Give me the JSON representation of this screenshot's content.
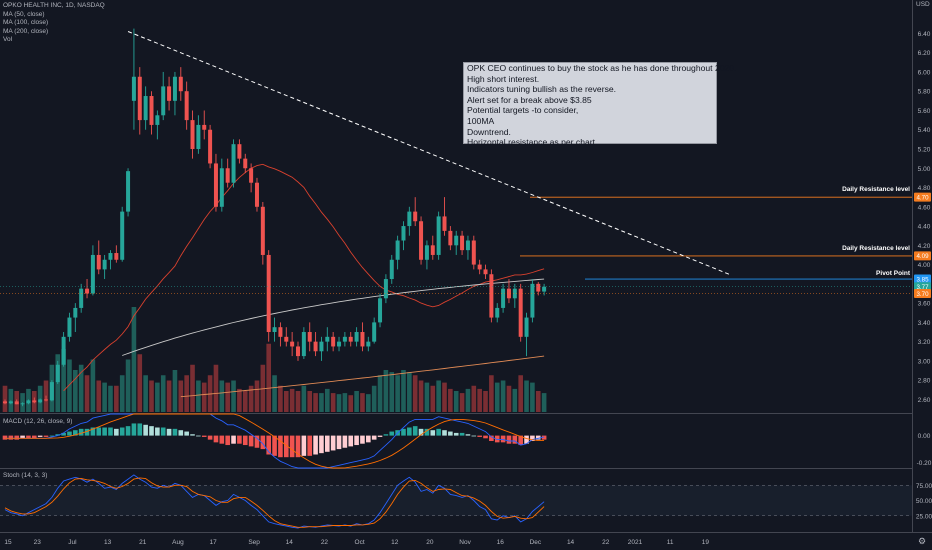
{
  "legend": {
    "symbol": "OPKO HEALTH INC, 1D, NASDAQ",
    "ma50": "MA (50, close)",
    "ma100": "MA (100, close)",
    "ma200": "MA (200, close)",
    "vol": "Vol"
  },
  "currency": "USD",
  "icons": {
    "settings": "gear-icon"
  },
  "macd_label": "MACD (12, 26, close, 9)",
  "stoch_label": "Stoch (14, 3, 3)",
  "note_lines": [
    "OPK CEO continues to buy the stock as he has done throughout 2020.",
    "High short interest.",
    "Indicators tuning bullish as the reverse.",
    "Alert set for a break above $3.85",
    "Potential targets -to consider,",
    "100MA",
    "Downtrend.",
    "Horizontal resistance as per chart."
  ],
  "colors": {
    "up": "#26a69a",
    "down": "#ef5350",
    "background": "#131722",
    "ma50": "#d9412e",
    "ma100": "#c9c9c9",
    "ma200": "#e08a55",
    "resistance": "#f57c1f",
    "pivot": "#2196f3",
    "macd": "#2962ff",
    "signal": "#ff6d00"
  },
  "chart_data": {
    "type": "candlestick",
    "x_ticks": [
      "15",
      "23",
      "Jul",
      "13",
      "21",
      "Aug",
      "17",
      "Sep",
      "14",
      "22",
      "Oct",
      "12",
      "20",
      "Nov",
      "16",
      "Dec",
      "14",
      "22",
      "2021",
      "11",
      "19"
    ],
    "y_ticks": [
      "2.60",
      "2.80",
      "3.00",
      "3.20",
      "3.40",
      "3.60",
      "3.80",
      "4.00",
      "4.20",
      "4.40",
      "4.60",
      "4.80",
      "5.00",
      "5.20",
      "5.40",
      "5.60",
      "5.80",
      "6.00",
      "6.20",
      "6.40"
    ],
    "ylim": [
      2.48,
      6.56
    ],
    "annotations": {
      "daily_resistance_1": {
        "label": "Daily Resistance level",
        "value": 4.7,
        "price_label": "4.70"
      },
      "daily_resistance_2": {
        "label": "Daily Resistance level",
        "value": 4.09,
        "price_label": "4.09"
      },
      "pivot_point": {
        "label": "Pivot Point",
        "value": 3.85,
        "price_label": "3.85"
      },
      "last_price": {
        "value": 3.77,
        "price_label": "3.77"
      },
      "ma_price": {
        "value": 3.7,
        "price_label": "3.70"
      },
      "downtrend_line": {
        "start": [
          21,
          6.42
        ],
        "end": [
          83,
          3.89
        ]
      }
    },
    "macd_ticks": [
      "0.00",
      "-0.20"
    ],
    "macd_ylim": [
      -0.24,
      0.16
    ],
    "stoch_ticks": [
      "75.00",
      "50.00",
      "25.00"
    ],
    "stoch_ylim": [
      0,
      100
    ],
    "candles": [
      [
        2.58,
        2.6,
        2.55,
        2.56
      ],
      [
        2.56,
        2.59,
        2.55,
        2.58
      ],
      [
        2.58,
        2.6,
        2.55,
        2.55
      ],
      [
        2.55,
        2.57,
        2.53,
        2.56
      ],
      [
        2.56,
        2.6,
        2.55,
        2.59
      ],
      [
        2.59,
        2.62,
        2.56,
        2.57
      ],
      [
        2.57,
        2.61,
        2.56,
        2.6
      ],
      [
        2.6,
        2.64,
        2.58,
        2.59
      ],
      [
        2.59,
        2.8,
        2.58,
        2.78
      ],
      [
        2.78,
        3.0,
        2.76,
        2.96
      ],
      [
        2.96,
        3.3,
        2.94,
        3.25
      ],
      [
        3.25,
        3.5,
        3.2,
        3.45
      ],
      [
        3.45,
        3.6,
        3.3,
        3.55
      ],
      [
        3.55,
        3.8,
        3.5,
        3.75
      ],
      [
        3.75,
        3.85,
        3.65,
        3.7
      ],
      [
        3.7,
        4.2,
        3.68,
        4.1
      ],
      [
        4.1,
        4.25,
        3.9,
        3.95
      ],
      [
        3.95,
        4.1,
        3.85,
        4.05
      ],
      [
        4.05,
        4.15,
        3.95,
        4.12
      ],
      [
        4.12,
        4.2,
        4.02,
        4.05
      ],
      [
        4.05,
        4.6,
        4.03,
        4.55
      ],
      [
        4.55,
        5.0,
        4.5,
        4.97
      ],
      [
        5.7,
        6.45,
        5.4,
        5.95
      ],
      [
        5.95,
        6.05,
        5.35,
        5.5
      ],
      [
        5.5,
        5.85,
        5.4,
        5.75
      ],
      [
        5.75,
        5.8,
        5.35,
        5.45
      ],
      [
        5.45,
        5.6,
        5.3,
        5.55
      ],
      [
        5.55,
        6.0,
        5.5,
        5.85
      ],
      [
        5.85,
        5.95,
        5.6,
        5.7
      ],
      [
        5.7,
        6.0,
        5.55,
        5.95
      ],
      [
        5.95,
        6.05,
        5.7,
        5.8
      ],
      [
        5.8,
        5.9,
        5.4,
        5.5
      ],
      [
        5.5,
        5.6,
        5.1,
        5.2
      ],
      [
        5.2,
        5.55,
        5.15,
        5.45
      ],
      [
        5.45,
        5.6,
        5.3,
        5.4
      ],
      [
        5.4,
        5.45,
        5.0,
        5.05
      ],
      [
        5.05,
        5.15,
        4.55,
        4.6
      ],
      [
        4.6,
        5.1,
        4.55,
        5.0
      ],
      [
        5.0,
        5.1,
        4.8,
        4.85
      ],
      [
        4.85,
        5.3,
        4.8,
        5.25
      ],
      [
        5.25,
        5.3,
        5.05,
        5.1
      ],
      [
        5.1,
        5.15,
        4.95,
        5.0
      ],
      [
        5.0,
        5.05,
        4.75,
        4.85
      ],
      [
        4.85,
        4.9,
        4.55,
        4.6
      ],
      [
        4.6,
        4.65,
        4.0,
        4.1
      ],
      [
        4.1,
        4.15,
        3.2,
        3.3
      ],
      [
        3.3,
        3.45,
        3.2,
        3.35
      ],
      [
        3.35,
        3.4,
        3.15,
        3.25
      ],
      [
        3.25,
        3.35,
        3.15,
        3.2
      ],
      [
        3.2,
        3.3,
        3.05,
        3.15
      ],
      [
        3.15,
        3.2,
        3.0,
        3.05
      ],
      [
        3.05,
        3.35,
        3.02,
        3.3
      ],
      [
        3.3,
        3.4,
        3.1,
        3.2
      ],
      [
        3.2,
        3.3,
        3.05,
        3.1
      ],
      [
        3.1,
        3.25,
        3.0,
        3.2
      ],
      [
        3.2,
        3.35,
        3.1,
        3.25
      ],
      [
        3.25,
        3.3,
        3.1,
        3.15
      ],
      [
        3.15,
        3.25,
        3.1,
        3.2
      ],
      [
        3.2,
        3.3,
        3.15,
        3.25
      ],
      [
        3.25,
        3.3,
        3.15,
        3.2
      ],
      [
        3.2,
        3.35,
        3.15,
        3.3
      ],
      [
        3.3,
        3.4,
        3.1,
        3.15
      ],
      [
        3.15,
        3.25,
        3.1,
        3.2
      ],
      [
        3.2,
        3.45,
        3.18,
        3.4
      ],
      [
        3.4,
        3.7,
        3.35,
        3.65
      ],
      [
        3.65,
        3.9,
        3.6,
        3.85
      ],
      [
        3.85,
        4.1,
        3.8,
        4.05
      ],
      [
        4.05,
        4.3,
        3.95,
        4.25
      ],
      [
        4.25,
        4.45,
        4.15,
        4.4
      ],
      [
        4.4,
        4.6,
        4.3,
        4.55
      ],
      [
        4.55,
        4.7,
        4.4,
        4.45
      ],
      [
        4.45,
        4.5,
        4.0,
        4.05
      ],
      [
        4.05,
        4.25,
        3.95,
        4.2
      ],
      [
        4.2,
        4.3,
        4.05,
        4.1
      ],
      [
        4.1,
        4.55,
        4.05,
        4.5
      ],
      [
        4.5,
        4.7,
        4.3,
        4.35
      ],
      [
        4.35,
        4.4,
        4.15,
        4.2
      ],
      [
        4.2,
        4.35,
        4.1,
        4.3
      ],
      [
        4.3,
        4.35,
        4.1,
        4.15
      ],
      [
        4.15,
        4.3,
        4.05,
        4.25
      ],
      [
        4.25,
        4.3,
        3.95,
        4.0
      ],
      [
        4.0,
        4.05,
        3.9,
        3.95
      ],
      [
        3.95,
        4.0,
        3.85,
        3.9
      ],
      [
        3.9,
        3.95,
        3.4,
        3.45
      ],
      [
        3.45,
        3.6,
        3.4,
        3.55
      ],
      [
        3.55,
        3.8,
        3.5,
        3.75
      ],
      [
        3.75,
        3.85,
        3.6,
        3.65
      ],
      [
        3.65,
        3.8,
        3.55,
        3.75
      ],
      [
        3.75,
        3.8,
        3.2,
        3.25
      ],
      [
        3.25,
        3.5,
        3.05,
        3.45
      ],
      [
        3.45,
        3.85,
        3.4,
        3.8
      ],
      [
        3.8,
        3.82,
        3.68,
        3.72
      ],
      [
        3.72,
        3.8,
        3.68,
        3.77
      ]
    ],
    "volume": [
      0.25,
      0.22,
      0.2,
      0.18,
      0.22,
      0.2,
      0.25,
      0.3,
      0.45,
      0.55,
      0.6,
      0.5,
      0.4,
      0.45,
      0.35,
      0.5,
      0.3,
      0.28,
      0.25,
      0.25,
      0.35,
      0.5,
      1.0,
      0.55,
      0.35,
      0.3,
      0.28,
      0.35,
      0.3,
      0.4,
      0.3,
      0.35,
      0.45,
      0.3,
      0.28,
      0.35,
      0.45,
      0.3,
      0.28,
      0.3,
      0.22,
      0.2,
      0.25,
      0.3,
      0.45,
      0.65,
      0.35,
      0.25,
      0.2,
      0.22,
      0.2,
      0.25,
      0.2,
      0.18,
      0.18,
      0.22,
      0.18,
      0.17,
      0.18,
      0.16,
      0.2,
      0.18,
      0.17,
      0.25,
      0.35,
      0.4,
      0.38,
      0.35,
      0.4,
      0.38,
      0.35,
      0.3,
      0.28,
      0.25,
      0.3,
      0.28,
      0.22,
      0.2,
      0.18,
      0.22,
      0.25,
      0.22,
      0.2,
      0.35,
      0.28,
      0.3,
      0.25,
      0.22,
      0.35,
      0.3,
      0.28,
      0.2,
      0.18
    ],
    "macd_hist": [
      -0.03,
      -0.03,
      -0.03,
      -0.02,
      -0.02,
      -0.02,
      -0.01,
      -0.01,
      0.0,
      0.01,
      0.02,
      0.03,
      0.04,
      0.05,
      0.05,
      0.06,
      0.06,
      0.06,
      0.06,
      0.05,
      0.06,
      0.07,
      0.09,
      0.09,
      0.08,
      0.07,
      0.06,
      0.06,
      0.05,
      0.05,
      0.04,
      0.03,
      0.01,
      0.0,
      -0.01,
      -0.03,
      -0.05,
      -0.06,
      -0.07,
      -0.06,
      -0.06,
      -0.07,
      -0.08,
      -0.09,
      -0.1,
      -0.14,
      -0.15,
      -0.16,
      -0.16,
      -0.16,
      -0.16,
      -0.15,
      -0.15,
      -0.14,
      -0.13,
      -0.12,
      -0.11,
      -0.1,
      -0.09,
      -0.08,
      -0.07,
      -0.06,
      -0.05,
      -0.03,
      -0.01,
      0.01,
      0.03,
      0.04,
      0.05,
      0.06,
      0.07,
      0.05,
      0.05,
      0.04,
      0.05,
      0.04,
      0.03,
      0.02,
      0.02,
      0.01,
      0.0,
      -0.01,
      -0.02,
      -0.04,
      -0.05,
      -0.05,
      -0.06,
      -0.06,
      -0.07,
      -0.06,
      -0.04,
      -0.03,
      -0.03
    ],
    "macd_line": [
      -0.02,
      -0.02,
      -0.02,
      -0.02,
      -0.02,
      -0.02,
      -0.02,
      -0.02,
      -0.01,
      0.0,
      0.02,
      0.05,
      0.07,
      0.09,
      0.1,
      0.13,
      0.14,
      0.15,
      0.16,
      0.16,
      0.18,
      0.21,
      0.28,
      0.3,
      0.31,
      0.31,
      0.3,
      0.31,
      0.3,
      0.31,
      0.3,
      0.28,
      0.25,
      0.23,
      0.21,
      0.18,
      0.13,
      0.11,
      0.08,
      0.08,
      0.06,
      0.04,
      0.01,
      -0.02,
      -0.06,
      -0.12,
      -0.16,
      -0.19,
      -0.21,
      -0.23,
      -0.25,
      -0.25,
      -0.25,
      -0.25,
      -0.25,
      -0.24,
      -0.23,
      -0.22,
      -0.21,
      -0.2,
      -0.19,
      -0.18,
      -0.17,
      -0.15,
      -0.11,
      -0.07,
      -0.03,
      0.02,
      0.06,
      0.1,
      0.12,
      0.12,
      0.12,
      0.12,
      0.14,
      0.13,
      0.12,
      0.11,
      0.1,
      0.09,
      0.07,
      0.05,
      0.03,
      -0.01,
      -0.03,
      -0.03,
      -0.04,
      -0.04,
      -0.07,
      -0.06,
      -0.03,
      -0.02,
      -0.01
    ],
    "stoch_k": [
      35,
      30,
      28,
      25,
      30,
      35,
      40,
      45,
      55,
      70,
      82,
      85,
      88,
      85,
      80,
      85,
      78,
      70,
      72,
      68,
      78,
      85,
      92,
      85,
      80,
      72,
      70,
      75,
      72,
      78,
      75,
      65,
      55,
      60,
      58,
      50,
      42,
      48,
      50,
      60,
      55,
      50,
      42,
      35,
      25,
      15,
      12,
      10,
      8,
      6,
      5,
      8,
      7,
      6,
      8,
      10,
      9,
      8,
      10,
      8,
      12,
      10,
      12,
      18,
      30,
      45,
      60,
      75,
      82,
      88,
      80,
      65,
      68,
      62,
      75,
      70,
      60,
      58,
      55,
      58,
      50,
      40,
      35,
      20,
      18,
      25,
      22,
      25,
      15,
      20,
      32,
      40,
      48
    ],
    "stoch_d": [
      38,
      33,
      30,
      28,
      28,
      30,
      35,
      40,
      47,
      57,
      69,
      79,
      85,
      86,
      84,
      83,
      81,
      78,
      73,
      70,
      73,
      78,
      85,
      87,
      86,
      79,
      74,
      72,
      72,
      75,
      75,
      73,
      65,
      60,
      58,
      56,
      50,
      47,
      47,
      53,
      55,
      55,
      49,
      42,
      34,
      25,
      17,
      12,
      10,
      8,
      6,
      6,
      7,
      7,
      7,
      8,
      9,
      9,
      9,
      9,
      10,
      10,
      11,
      13,
      20,
      31,
      45,
      60,
      72,
      82,
      83,
      78,
      71,
      65,
      68,
      69,
      68,
      63,
      58,
      57,
      54,
      49,
      42,
      32,
      24,
      21,
      22,
      24,
      21,
      20,
      22,
      31,
      40
    ]
  }
}
